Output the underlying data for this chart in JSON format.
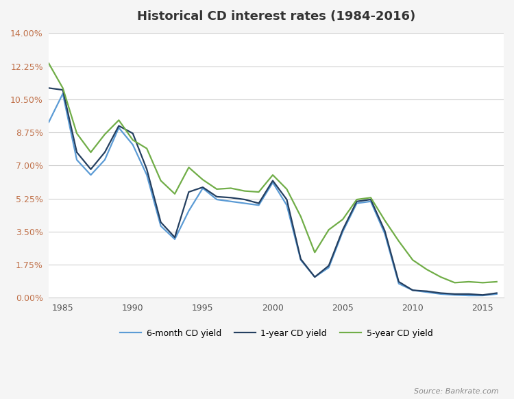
{
  "title": "Historical CD interest rates (1984-2016)",
  "source_text": "Source: Bankrate.com",
  "background_color": "#f5f5f5",
  "plot_bg_color": "#ffffff",
  "grid_color": "#d0d0d0",
  "years": [
    1984,
    1985,
    1986,
    1987,
    1988,
    1989,
    1990,
    1991,
    1992,
    1993,
    1994,
    1995,
    1996,
    1997,
    1998,
    1999,
    2000,
    2001,
    2002,
    2003,
    2004,
    2005,
    2006,
    2007,
    2008,
    2009,
    2010,
    2011,
    2012,
    2013,
    2014,
    2015,
    2016
  ],
  "six_month": [
    9.3,
    10.8,
    7.3,
    6.5,
    7.3,
    9.0,
    8.1,
    6.5,
    3.8,
    3.1,
    4.6,
    5.8,
    5.2,
    5.1,
    5.0,
    4.9,
    6.1,
    4.9,
    2.0,
    1.1,
    1.6,
    3.5,
    5.0,
    5.1,
    3.4,
    0.75,
    0.4,
    0.3,
    0.2,
    0.15,
    0.12,
    0.12,
    0.2
  ],
  "one_year": [
    11.1,
    11.0,
    7.7,
    6.8,
    7.7,
    9.1,
    8.7,
    6.8,
    4.0,
    3.2,
    5.6,
    5.85,
    5.35,
    5.3,
    5.2,
    5.0,
    6.2,
    5.2,
    2.05,
    1.1,
    1.7,
    3.6,
    5.1,
    5.2,
    3.55,
    0.85,
    0.4,
    0.35,
    0.25,
    0.2,
    0.2,
    0.15,
    0.25
  ],
  "five_year": [
    12.4,
    11.1,
    8.7,
    7.7,
    8.65,
    9.4,
    8.35,
    7.9,
    6.2,
    5.5,
    6.9,
    6.25,
    5.75,
    5.8,
    5.65,
    5.6,
    6.5,
    5.75,
    4.3,
    2.4,
    3.6,
    4.15,
    5.2,
    5.3,
    4.1,
    3.0,
    2.0,
    1.5,
    1.1,
    0.8,
    0.85,
    0.8,
    0.85
  ],
  "six_month_color": "#5b9bd5",
  "one_year_color": "#243f60",
  "five_year_color": "#70ad47",
  "ytick_color": "#c0714a",
  "yticks": [
    0.0,
    1.75,
    3.5,
    5.25,
    7.0,
    8.75,
    10.5,
    12.25,
    14.0
  ],
  "ytick_labels": [
    "0.00%",
    "1.75%",
    "3.50%",
    "5.25%",
    "7.00%",
    "8.75%",
    "10.50%",
    "12.25%",
    "14.00%"
  ],
  "xticks": [
    1985,
    1990,
    1995,
    2000,
    2005,
    2010,
    2015
  ],
  "ylim": [
    0.0,
    14.0
  ],
  "xlim": [
    1984,
    2016.5
  ],
  "legend_labels": [
    "6-month CD yield",
    "1-year CD yield",
    "5-year CD yield"
  ]
}
